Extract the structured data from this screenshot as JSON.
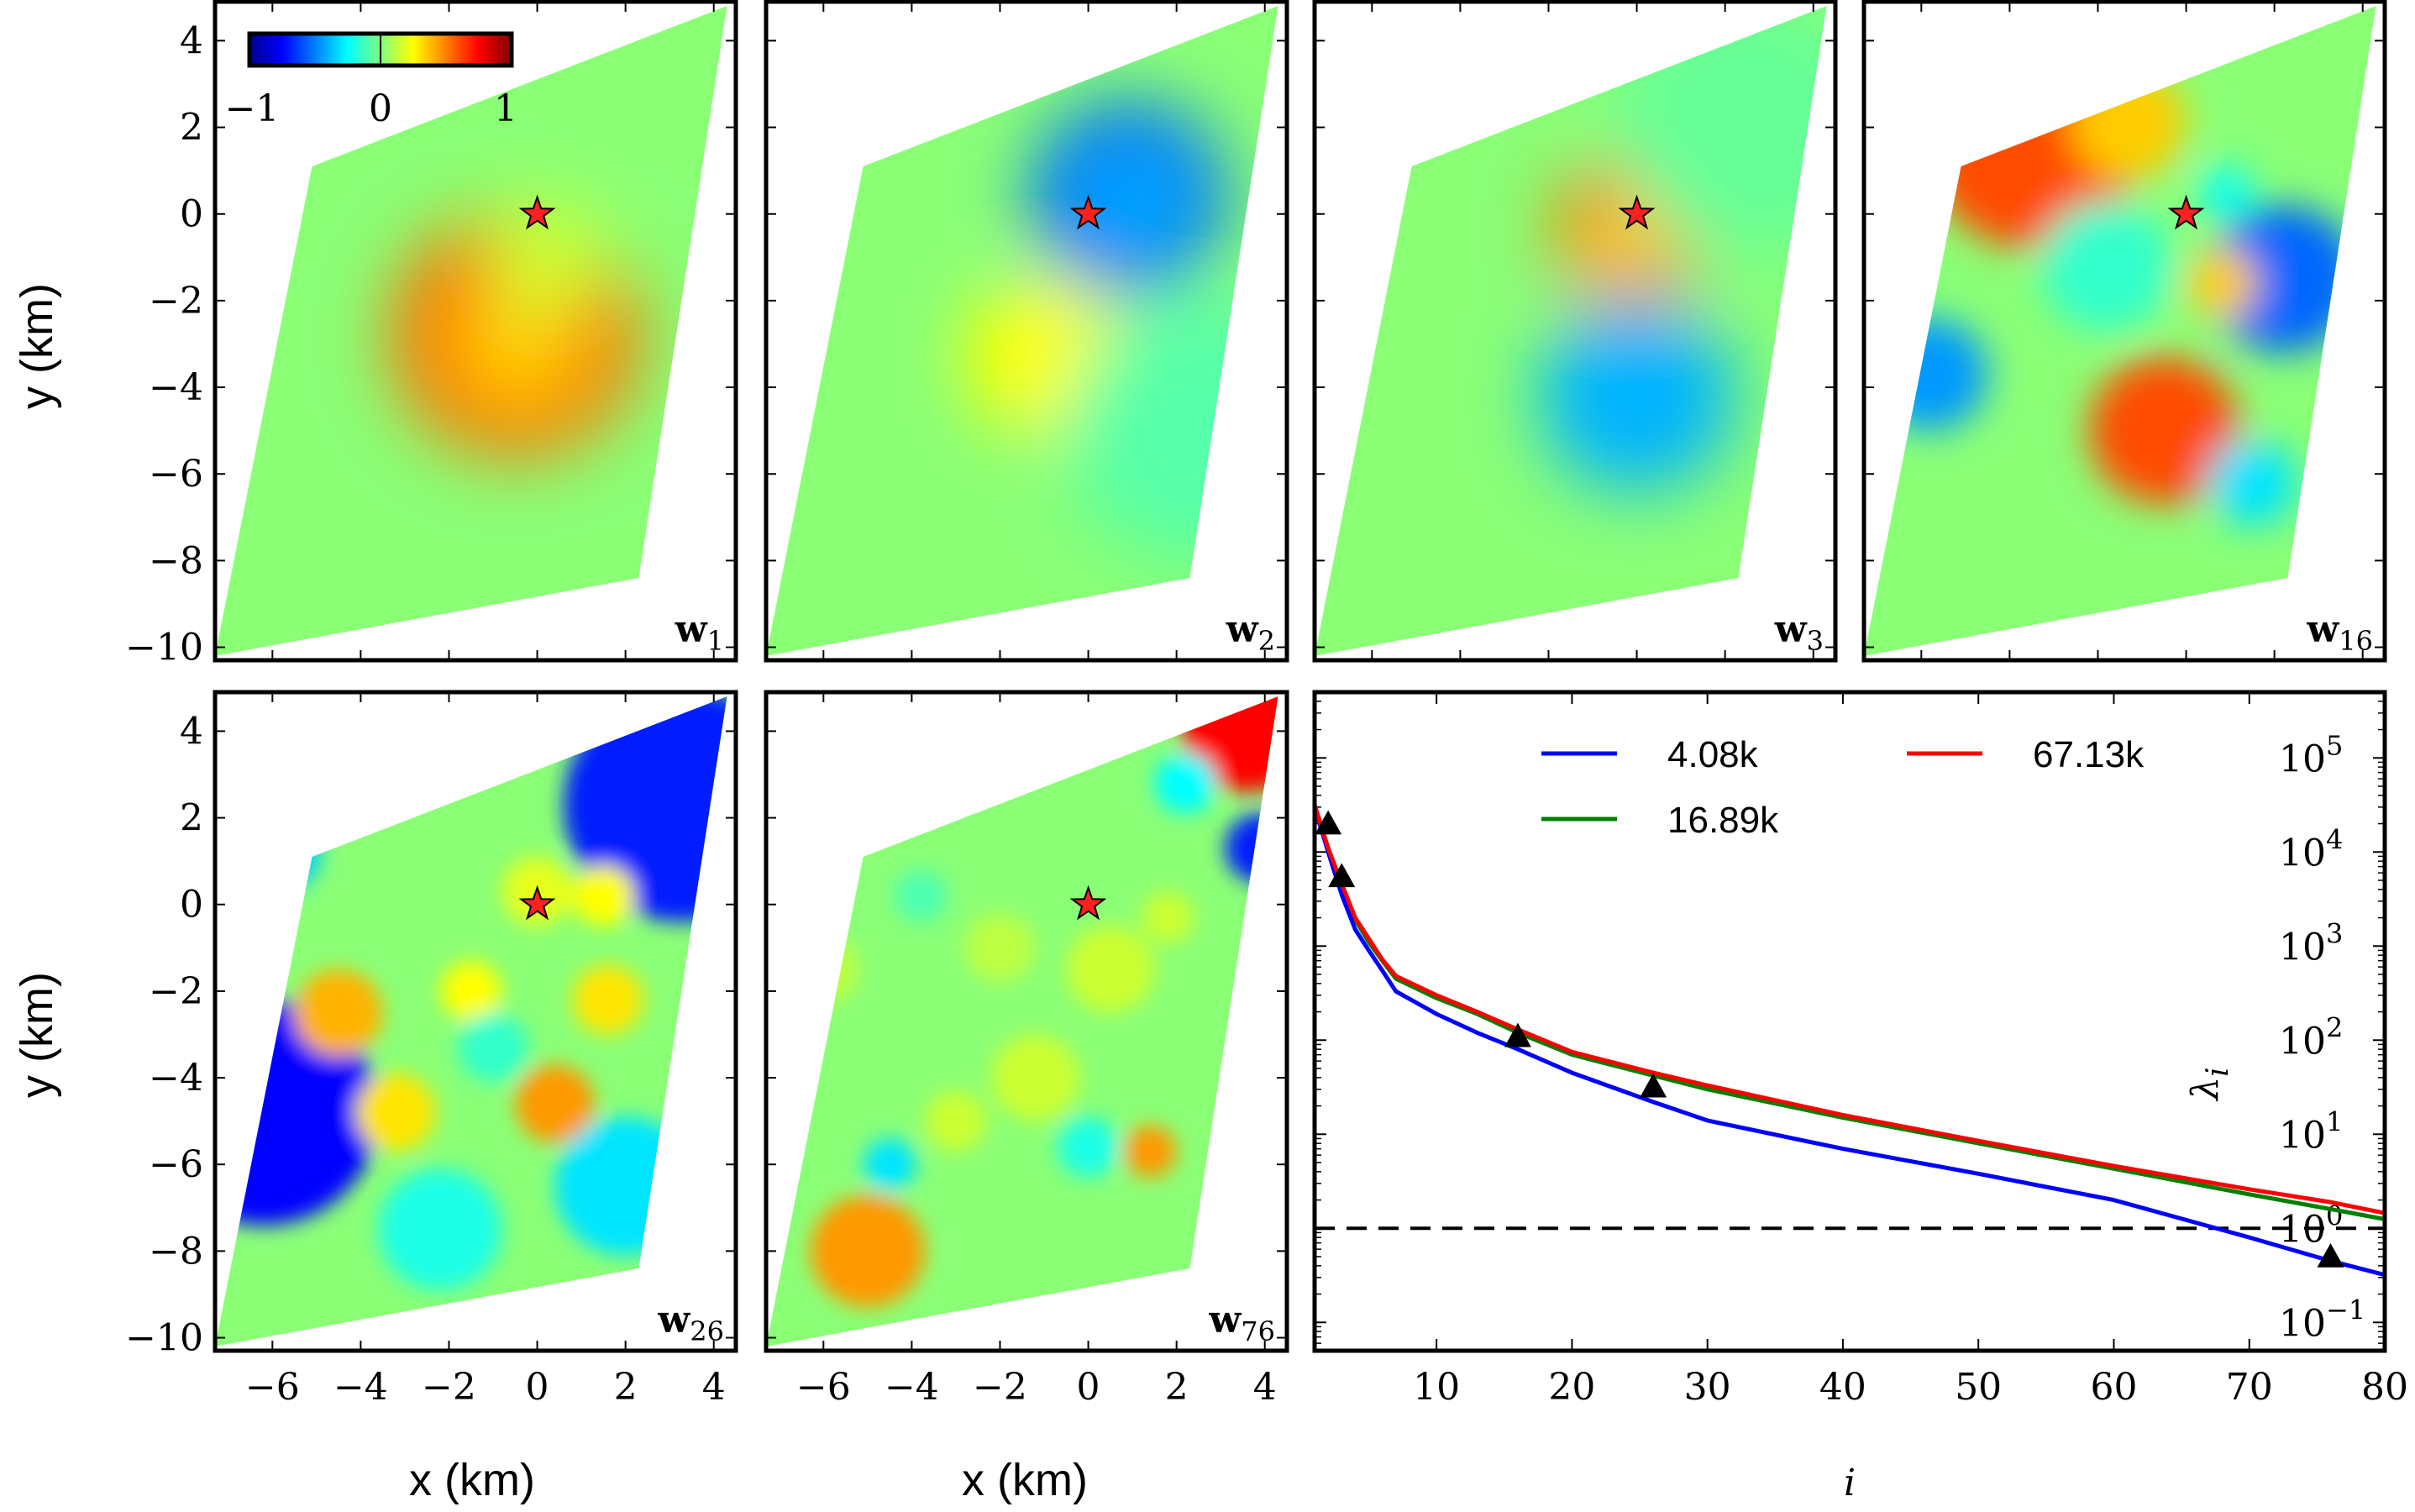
{
  "figure": {
    "ylabel": "y (km)",
    "xlabel": "x (km)",
    "star_marker": "red star at (0, 0)"
  },
  "colorbar": {
    "ticks": [
      "−1",
      "0",
      "1"
    ],
    "colormap": "jet",
    "range": [
      -1,
      1
    ]
  },
  "map_axes": {
    "x_ticks": [
      "−6",
      "−4",
      "−2",
      "0",
      "2",
      "4"
    ],
    "x_tick_values": [
      -6,
      -4,
      -2,
      0,
      2,
      4
    ],
    "y_ticks": [
      "4",
      "2",
      "0",
      "−2",
      "−4",
      "−6",
      "−8",
      "−10"
    ],
    "y_tick_values": [
      4,
      2,
      0,
      -2,
      -4,
      -6,
      -8,
      -10
    ],
    "xlim": [
      -7.3,
      4.5
    ],
    "ylim": [
      -10.3,
      4.9
    ]
  },
  "panels": [
    {
      "id": "w1",
      "label_main": "w",
      "label_sub": "1"
    },
    {
      "id": "w2",
      "label_main": "w",
      "label_sub": "2"
    },
    {
      "id": "w3",
      "label_main": "w",
      "label_sub": "3"
    },
    {
      "id": "w16",
      "label_main": "w",
      "label_sub": "16"
    },
    {
      "id": "w26",
      "label_main": "w",
      "label_sub": "26"
    },
    {
      "id": "w76",
      "label_main": "w",
      "label_sub": "76"
    }
  ],
  "chart_data": {
    "type": "line",
    "title": "",
    "xlabel": "i",
    "ylabel_main": "λ",
    "ylabel_sub": "i",
    "yscale": "log",
    "xlim": [
      1,
      80
    ],
    "ylim": [
      0.05,
      500000
    ],
    "x_ticks": [
      "10",
      "20",
      "30",
      "40",
      "50",
      "60",
      "70",
      "80"
    ],
    "x_tick_values": [
      10,
      20,
      30,
      40,
      50,
      60,
      70,
      80
    ],
    "y_ticks": [
      {
        "base": "10",
        "exp": "5",
        "value": 100000
      },
      {
        "base": "10",
        "exp": "4",
        "value": 10000
      },
      {
        "base": "10",
        "exp": "3",
        "value": 1000
      },
      {
        "base": "10",
        "exp": "2",
        "value": 100
      },
      {
        "base": "10",
        "exp": "1",
        "value": 10
      },
      {
        "base": "10",
        "exp": "0",
        "value": 1
      },
      {
        "base": "10",
        "exp": "−1",
        "value": 0.1
      }
    ],
    "legend": {
      "placement": "top",
      "entries": [
        "4.08k",
        "16.89k",
        "67.13k"
      ]
    },
    "series": [
      {
        "name": "4.08k",
        "color": "#0000ff",
        "x": [
          1,
          2,
          3,
          4,
          5,
          6,
          7,
          10,
          13,
          16,
          20,
          26,
          30,
          40,
          50,
          60,
          70,
          76,
          80
        ],
        "y": [
          30000,
          10000,
          3500,
          1500,
          900,
          550,
          330,
          190,
          120,
          80,
          45,
          22,
          14,
          7,
          3.8,
          2.0,
          0.8,
          0.45,
          0.32
        ]
      },
      {
        "name": "16.89k",
        "color": "#008000",
        "x": [
          1,
          2,
          3,
          4,
          5,
          6,
          7,
          10,
          13,
          16,
          20,
          26,
          30,
          40,
          50,
          60,
          70,
          76,
          80
        ],
        "y": [
          30000,
          11000,
          4500,
          1900,
          1100,
          700,
          450,
          280,
          190,
          120,
          70,
          42,
          30,
          15,
          8,
          4.3,
          2.3,
          1.6,
          1.25
        ]
      },
      {
        "name": "67.13k",
        "color": "#ff0000",
        "x": [
          1,
          2,
          3,
          4,
          5,
          6,
          7,
          10,
          13,
          16,
          20,
          26,
          30,
          40,
          50,
          60,
          70,
          76,
          80
        ],
        "y": [
          32000,
          11000,
          4600,
          2000,
          1200,
          720,
          480,
          300,
          200,
          130,
          75,
          45,
          33,
          16,
          8.5,
          4.6,
          2.6,
          1.9,
          1.45
        ]
      }
    ],
    "markers": {
      "shape": "triangle",
      "color": "#000000",
      "x": [
        2,
        3,
        16,
        26,
        76
      ],
      "y": [
        20000,
        5500,
        110,
        32,
        0.5
      ]
    },
    "hline": {
      "y": 1.0,
      "style": "dashed",
      "color": "#000000"
    }
  }
}
